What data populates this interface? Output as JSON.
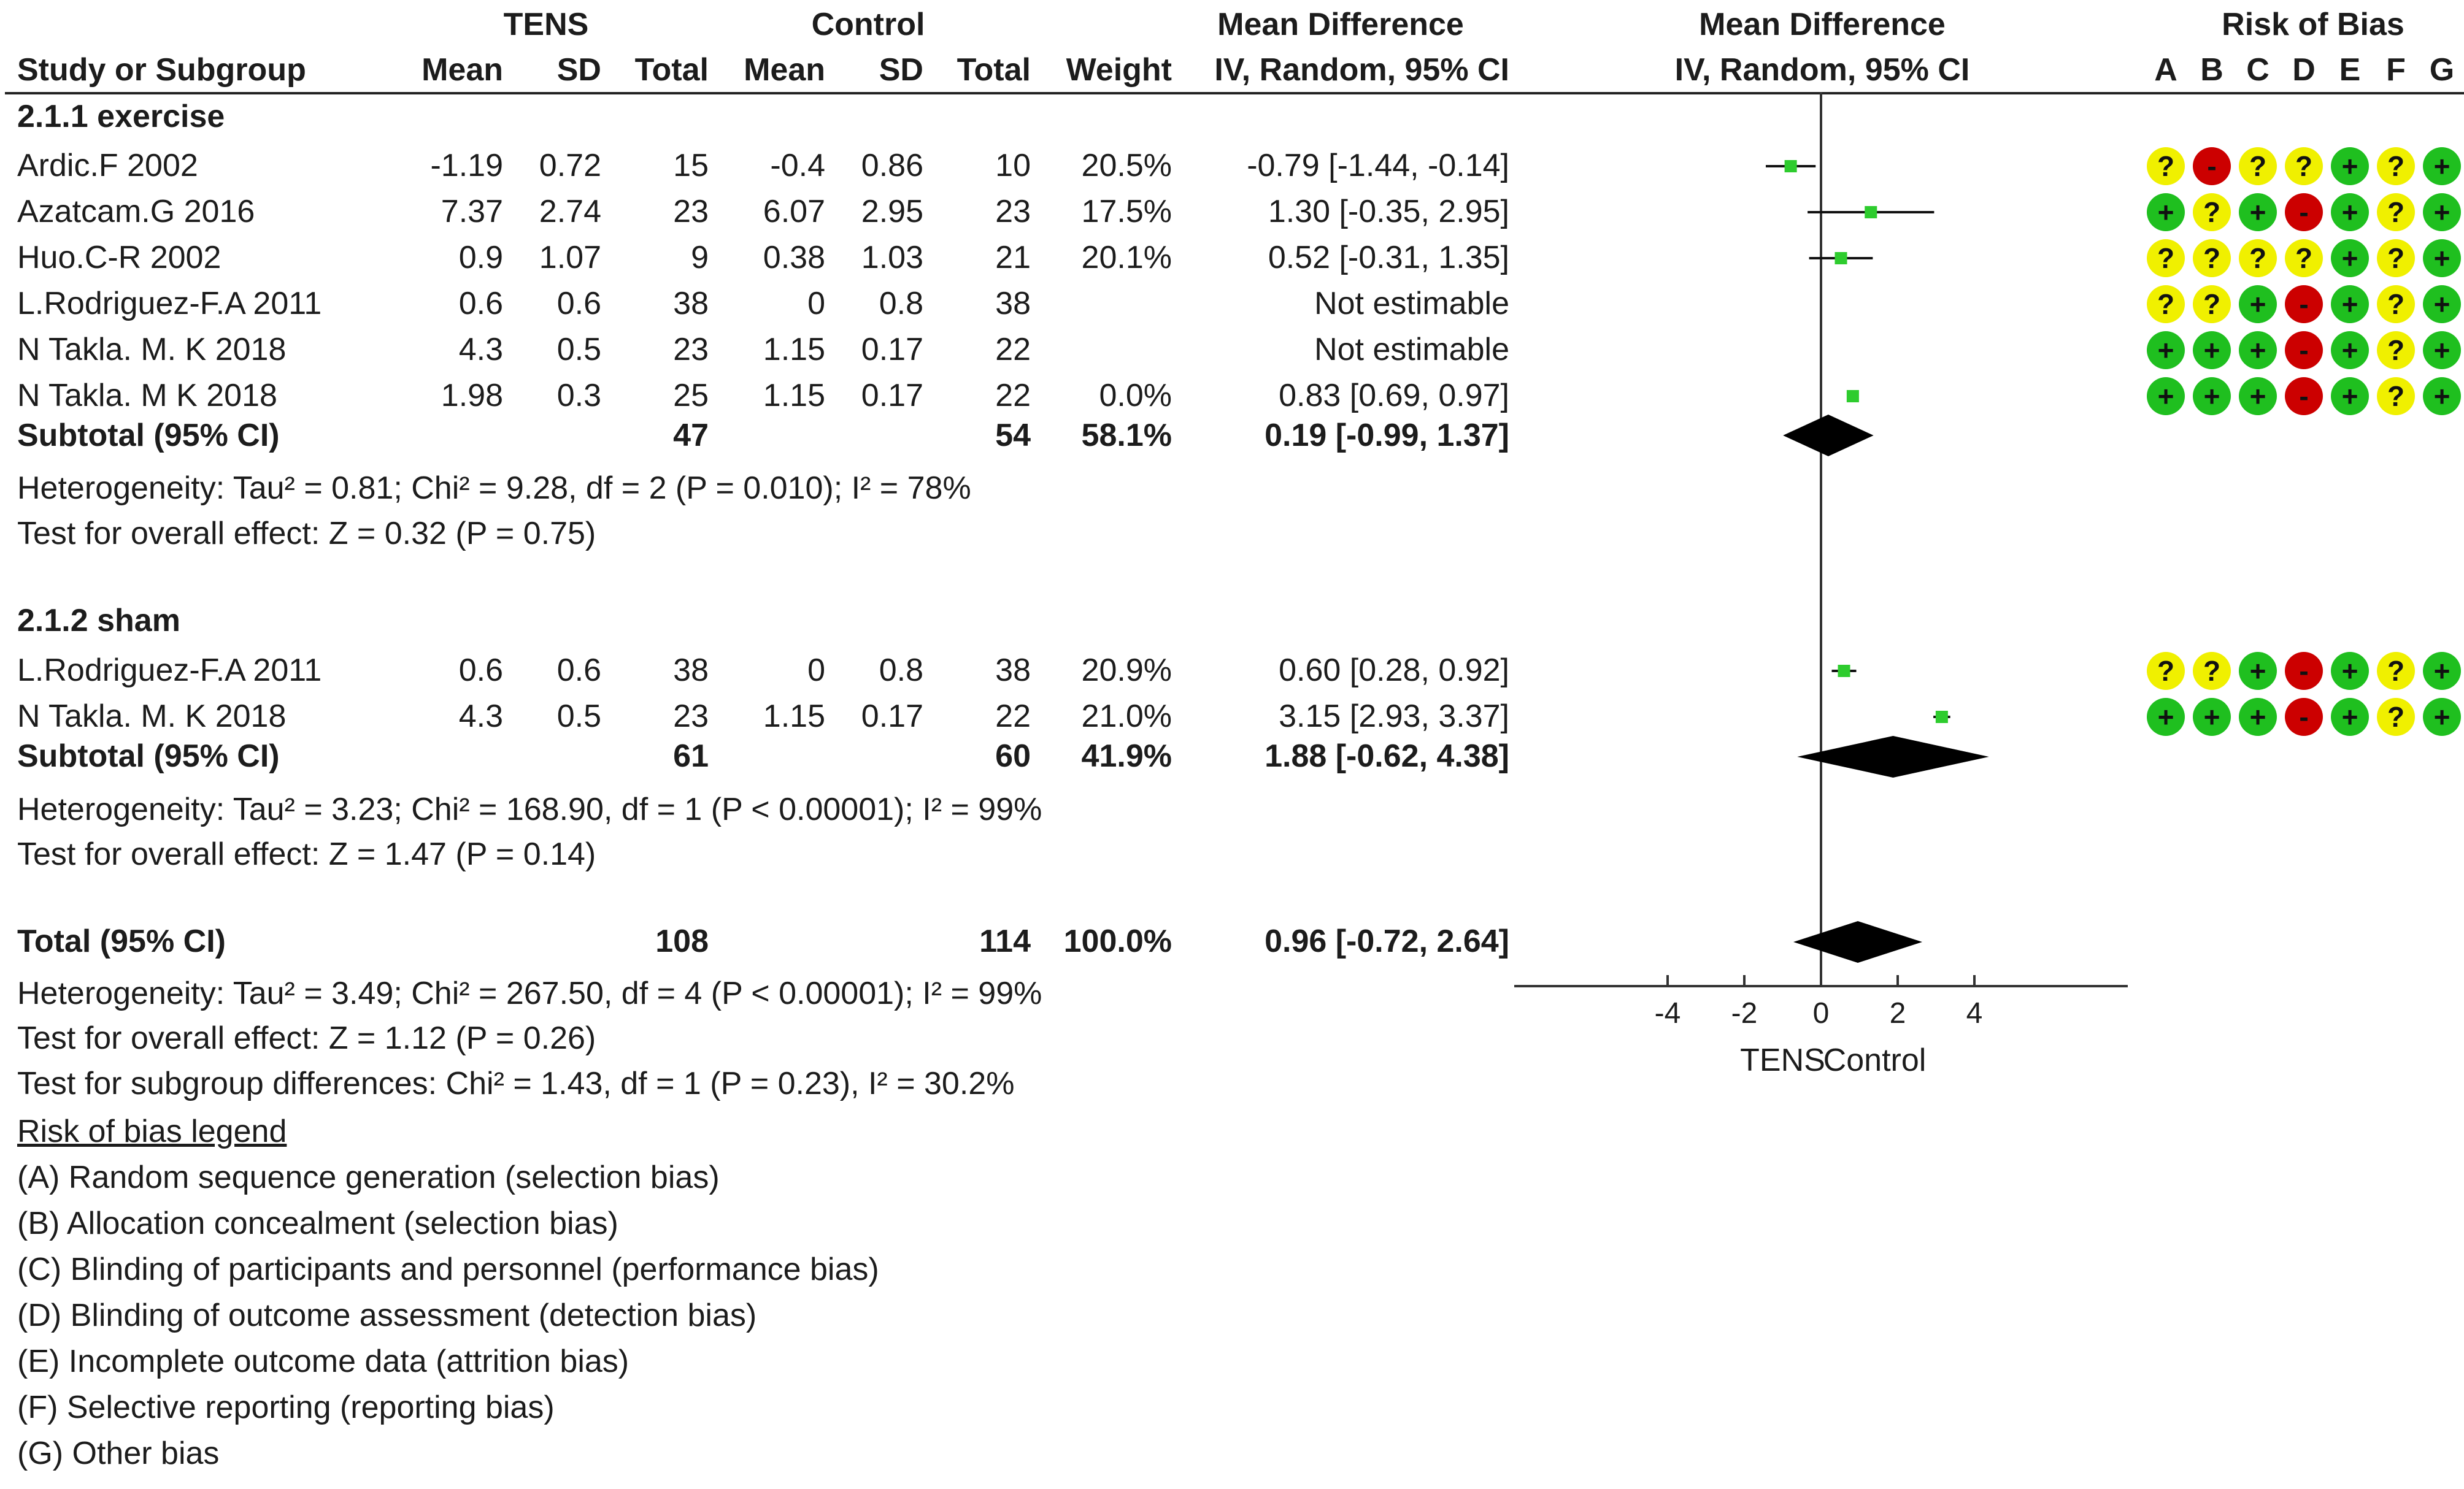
{
  "header": {
    "group1": "TENS",
    "group2": "Control",
    "md_header": "Mean Difference",
    "md_sub": "IV, Random, 95% CI",
    "plot_header": "Mean Difference",
    "plot_sub": "IV, Random, 95% CI",
    "rob_header": "Risk of Bias",
    "study_col": "Study or Subgroup",
    "mean1": "Mean",
    "sd1": "SD",
    "total1": "Total",
    "mean2": "Mean",
    "sd2": "SD",
    "total2": "Total",
    "weight": "Weight",
    "rob_letters": [
      "A",
      "B",
      "C",
      "D",
      "E",
      "F",
      "G"
    ]
  },
  "subgroups": [
    {
      "title": "2.1.1 exercise",
      "studies": [
        {
          "name": "Ardic.F  2002",
          "m1": "-1.19",
          "sd1": "0.72",
          "n1": "15",
          "m2": "-0.4",
          "sd2": "0.86",
          "n2": "10",
          "w": "20.5%",
          "ci": "-0.79 [-1.44, -0.14]",
          "rob": [
            "?",
            "-",
            "?",
            "?",
            "+",
            "?",
            "+"
          ]
        },
        {
          "name": "Azatcam.G 2016",
          "m1": "7.37",
          "sd1": "2.74",
          "n1": "23",
          "m2": "6.07",
          "sd2": "2.95",
          "n2": "23",
          "w": "17.5%",
          "ci": "1.30 [-0.35, 2.95]",
          "rob": [
            "+",
            "?",
            "+",
            "-",
            "+",
            "?",
            "+"
          ]
        },
        {
          "name": "Huo.C-R 2002",
          "m1": "0.9",
          "sd1": "1.07",
          "n1": "9",
          "m2": "0.38",
          "sd2": "1.03",
          "n2": "21",
          "w": "20.1%",
          "ci": "0.52 [-0.31, 1.35]",
          "rob": [
            "?",
            "?",
            "?",
            "?",
            "+",
            "?",
            "+"
          ]
        },
        {
          "name": "L.Rodriguez-F.A 2011",
          "m1": "0.6",
          "sd1": "0.6",
          "n1": "38",
          "m2": "0",
          "sd2": "0.8",
          "n2": "38",
          "w": "",
          "ci": "Not estimable",
          "rob": [
            "?",
            "?",
            "+",
            "-",
            "+",
            "?",
            "+"
          ]
        },
        {
          "name": "N Takla. M. K 2018",
          "m1": "4.3",
          "sd1": "0.5",
          "n1": "23",
          "m2": "1.15",
          "sd2": "0.17",
          "n2": "22",
          "w": "",
          "ci": "Not estimable",
          "rob": [
            "+",
            "+",
            "+",
            "-",
            "+",
            "?",
            "+"
          ]
        },
        {
          "name": "N Takla. M K 2018",
          "m1": "1.98",
          "sd1": "0.3",
          "n1": "25",
          "m2": "1.15",
          "sd2": "0.17",
          "n2": "22",
          "w": "0.0%",
          "ci": "0.83 [0.69, 0.97]",
          "rob": [
            "+",
            "+",
            "+",
            "-",
            "+",
            "?",
            "+"
          ]
        }
      ],
      "subtotal": {
        "label": "Subtotal (95% CI)",
        "n1": "47",
        "n2": "54",
        "w": "58.1%",
        "ci": "0.19 [-0.99, 1.37]"
      },
      "heterogeneity": "Heterogeneity: Tau² = 0.81; Chi² = 9.28, df = 2 (P = 0.010); I² = 78%",
      "overall": "Test for overall effect: Z = 0.32 (P = 0.75)"
    },
    {
      "title": "2.1.2 sham",
      "studies": [
        {
          "name": "L.Rodriguez-F.A 2011",
          "m1": "0.6",
          "sd1": "0.6",
          "n1": "38",
          "m2": "0",
          "sd2": "0.8",
          "n2": "38",
          "w": "20.9%",
          "ci": "0.60 [0.28, 0.92]",
          "rob": [
            "?",
            "?",
            "+",
            "-",
            "+",
            "?",
            "+"
          ]
        },
        {
          "name": "N Takla. M. K 2018",
          "m1": "4.3",
          "sd1": "0.5",
          "n1": "23",
          "m2": "1.15",
          "sd2": "0.17",
          "n2": "22",
          "w": "21.0%",
          "ci": "3.15 [2.93, 3.37]",
          "rob": [
            "+",
            "+",
            "+",
            "-",
            "+",
            "?",
            "+"
          ]
        }
      ],
      "subtotal": {
        "label": "Subtotal (95% CI)",
        "n1": "61",
        "n2": "60",
        "w": "41.9%",
        "ci": "1.88 [-0.62, 4.38]"
      },
      "heterogeneity": "Heterogeneity: Tau² = 3.23; Chi² = 168.90, df = 1 (P < 0.00001); I² = 99%",
      "overall": "Test for overall effect: Z = 1.47 (P = 0.14)"
    }
  ],
  "total": {
    "label": "Total (95% CI)",
    "n1": "108",
    "n2": "114",
    "w": "100.0%",
    "ci": "0.96 [-0.72, 2.64]",
    "heterogeneity": "Heterogeneity: Tau² = 3.49; Chi² = 267.50, df = 4 (P < 0.00001); I² = 99%",
    "overall": "Test for overall effect: Z = 1.12 (P = 0.26)",
    "subgroup_diff": "Test for subgroup differences: Chi² = 1.43, df = 1 (P = 0.23), I² = 30.2%"
  },
  "legend": {
    "title": "Risk of bias legend",
    "items": [
      "(A) Random sequence generation (selection bias)",
      "(B) Allocation concealment (selection bias)",
      "(C) Blinding of participants and personnel (performance bias)",
      "(D) Blinding of outcome assessment (detection bias)",
      "(E) Incomplete outcome data (attrition bias)",
      "(F) Selective reporting (reporting bias)",
      "(G) Other bias"
    ]
  },
  "colors": {
    "low": "#1fbf1f",
    "unclear": "#f0f000",
    "high": "#cc0000",
    "marker": "#2ecc2e",
    "diamond": "#000000"
  },
  "chart_data": {
    "type": "forest",
    "title": "Mean Difference IV, Random, 95% CI",
    "xlabel_left": "TENS",
    "xlabel_right": "Control",
    "xlim": [
      -8,
      8
    ],
    "xticks": [
      -4,
      -2,
      0,
      2,
      4
    ],
    "studies": [
      {
        "name": "Ardic.F  2002",
        "subgroup": "2.1.1 exercise",
        "md": -0.79,
        "lo": -1.44,
        "hi": -0.14,
        "weight": 20.5
      },
      {
        "name": "Azatcam.G 2016",
        "subgroup": "2.1.1 exercise",
        "md": 1.3,
        "lo": -0.35,
        "hi": 2.95,
        "weight": 17.5
      },
      {
        "name": "Huo.C-R 2002",
        "subgroup": "2.1.1 exercise",
        "md": 0.52,
        "lo": -0.31,
        "hi": 1.35,
        "weight": 20.1
      },
      {
        "name": "L.Rodriguez-F.A 2011",
        "subgroup": "2.1.1 exercise",
        "md": null,
        "lo": null,
        "hi": null,
        "weight": null
      },
      {
        "name": "N Takla. M. K 2018",
        "subgroup": "2.1.1 exercise",
        "md": null,
        "lo": null,
        "hi": null,
        "weight": null
      },
      {
        "name": "N Takla. M K 2018",
        "subgroup": "2.1.1 exercise",
        "md": 0.83,
        "lo": 0.69,
        "hi": 0.97,
        "weight": 0.0
      },
      {
        "name": "L.Rodriguez-F.A 2011",
        "subgroup": "2.1.2 sham",
        "md": 0.6,
        "lo": 0.28,
        "hi": 0.92,
        "weight": 20.9
      },
      {
        "name": "N Takla. M. K 2018",
        "subgroup": "2.1.2 sham",
        "md": 3.15,
        "lo": 2.93,
        "hi": 3.37,
        "weight": 21.0
      }
    ],
    "pooled": [
      {
        "name": "Subtotal 2.1.1 exercise",
        "md": 0.19,
        "lo": -0.99,
        "hi": 1.37
      },
      {
        "name": "Subtotal 2.1.2 sham",
        "md": 1.88,
        "lo": -0.62,
        "hi": 4.38
      },
      {
        "name": "Total",
        "md": 0.96,
        "lo": -0.72,
        "hi": 2.64
      }
    ]
  }
}
